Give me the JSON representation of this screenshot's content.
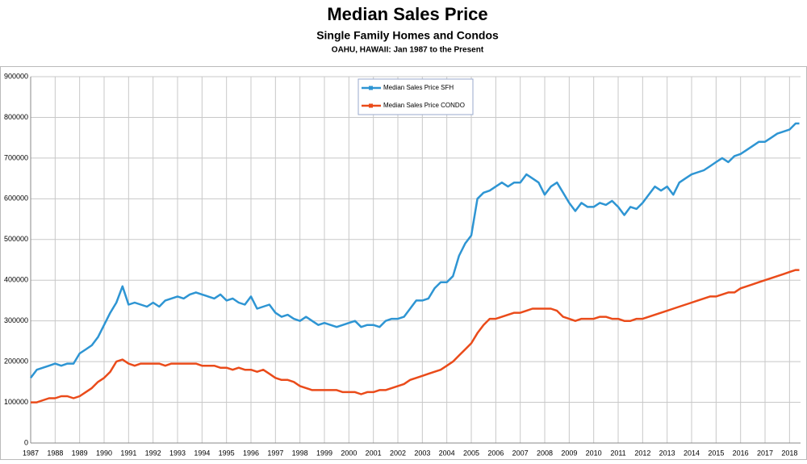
{
  "chart_data": {
    "type": "line",
    "title": "Median Sales Price",
    "subtitle": "Single Family Homes and Condos",
    "caption": "OAHU, HAWAII: Jan 1987 to the Present",
    "x": [
      1987,
      1987.25,
      1987.5,
      1987.75,
      1988,
      1988.25,
      1988.5,
      1988.75,
      1989,
      1989.25,
      1989.5,
      1989.75,
      1990,
      1990.25,
      1990.5,
      1990.75,
      1991,
      1991.25,
      1991.5,
      1991.75,
      1992,
      1992.25,
      1992.5,
      1992.75,
      1993,
      1993.25,
      1993.5,
      1993.75,
      1994,
      1994.25,
      1994.5,
      1994.75,
      1995,
      1995.25,
      1995.5,
      1995.75,
      1996,
      1996.25,
      1996.5,
      1996.75,
      1997,
      1997.25,
      1997.5,
      1997.75,
      1998,
      1998.25,
      1998.5,
      1998.75,
      1999,
      1999.25,
      1999.5,
      1999.75,
      2000,
      2000.25,
      2000.5,
      2000.75,
      2001,
      2001.25,
      2001.5,
      2001.75,
      2002,
      2002.25,
      2002.5,
      2002.75,
      2003,
      2003.25,
      2003.5,
      2003.75,
      2004,
      2004.25,
      2004.5,
      2004.75,
      2005,
      2005.25,
      2005.5,
      2005.75,
      2006,
      2006.25,
      2006.5,
      2006.75,
      2007,
      2007.25,
      2007.5,
      2007.75,
      2008,
      2008.25,
      2008.5,
      2008.75,
      2009,
      2009.25,
      2009.5,
      2009.75,
      2010,
      2010.25,
      2010.5,
      2010.75,
      2011,
      2011.25,
      2011.5,
      2011.75,
      2012,
      2012.25,
      2012.5,
      2012.75,
      2013,
      2013.25,
      2013.5,
      2013.75,
      2014,
      2014.25,
      2014.5,
      2014.75,
      2015,
      2015.25,
      2015.5,
      2015.75,
      2016,
      2016.25,
      2016.5,
      2016.75,
      2017,
      2017.25,
      2017.5,
      2017.75,
      2018,
      2018.25,
      2018.4
    ],
    "series": [
      {
        "name": "Median Sales Price SFH",
        "color": "#2e95d3",
        "values": [
          160000,
          180000,
          185000,
          190000,
          195000,
          190000,
          195000,
          195000,
          220000,
          230000,
          240000,
          260000,
          290000,
          320000,
          345000,
          385000,
          340000,
          345000,
          340000,
          335000,
          345000,
          335000,
          350000,
          355000,
          360000,
          355000,
          365000,
          370000,
          365000,
          360000,
          355000,
          365000,
          350000,
          355000,
          345000,
          340000,
          360000,
          330000,
          335000,
          340000,
          320000,
          310000,
          315000,
          305000,
          300000,
          310000,
          300000,
          290000,
          295000,
          290000,
          285000,
          290000,
          295000,
          300000,
          285000,
          290000,
          290000,
          285000,
          300000,
          305000,
          305000,
          310000,
          330000,
          350000,
          350000,
          355000,
          380000,
          395000,
          395000,
          410000,
          460000,
          490000,
          510000,
          600000,
          615000,
          620000,
          630000,
          640000,
          630000,
          640000,
          640000,
          660000,
          650000,
          640000,
          610000,
          630000,
          640000,
          615000,
          590000,
          570000,
          590000,
          580000,
          580000,
          590000,
          585000,
          595000,
          580000,
          560000,
          580000,
          575000,
          590000,
          610000,
          630000,
          620000,
          630000,
          610000,
          640000,
          650000,
          660000,
          665000,
          670000,
          680000,
          690000,
          700000,
          690000,
          705000,
          710000,
          720000,
          730000,
          740000,
          740000,
          750000,
          760000,
          765000,
          770000,
          785000,
          785000
        ]
      },
      {
        "name": "Median Sales Price CONDO",
        "color": "#ea4b1a",
        "values": [
          100000,
          100000,
          105000,
          110000,
          110000,
          115000,
          115000,
          110000,
          115000,
          125000,
          135000,
          150000,
          160000,
          175000,
          200000,
          205000,
          195000,
          190000,
          195000,
          195000,
          195000,
          195000,
          190000,
          195000,
          195000,
          195000,
          195000,
          195000,
          190000,
          190000,
          190000,
          185000,
          185000,
          180000,
          185000,
          180000,
          180000,
          175000,
          180000,
          170000,
          160000,
          155000,
          155000,
          150000,
          140000,
          135000,
          130000,
          130000,
          130000,
          130000,
          130000,
          125000,
          125000,
          125000,
          120000,
          125000,
          125000,
          130000,
          130000,
          135000,
          140000,
          145000,
          155000,
          160000,
          165000,
          170000,
          175000,
          180000,
          190000,
          200000,
          215000,
          230000,
          245000,
          270000,
          290000,
          305000,
          305000,
          310000,
          315000,
          320000,
          320000,
          325000,
          330000,
          330000,
          330000,
          330000,
          325000,
          310000,
          305000,
          300000,
          305000,
          305000,
          305000,
          310000,
          310000,
          305000,
          305000,
          300000,
          300000,
          305000,
          305000,
          310000,
          315000,
          320000,
          325000,
          330000,
          335000,
          340000,
          345000,
          350000,
          355000,
          360000,
          360000,
          365000,
          370000,
          370000,
          380000,
          385000,
          390000,
          395000,
          400000,
          405000,
          410000,
          415000,
          420000,
          425000,
          425000
        ]
      }
    ],
    "xlim": [
      1987,
      2018.45
    ],
    "xticks": [
      1987,
      1988,
      1989,
      1990,
      1991,
      1992,
      1993,
      1994,
      1995,
      1996,
      1997,
      1998,
      1999,
      2000,
      2001,
      2002,
      2003,
      2004,
      2005,
      2006,
      2007,
      2008,
      2009,
      2010,
      2011,
      2012,
      2013,
      2014,
      2015,
      2016,
      2017,
      2018
    ],
    "ylim": [
      0,
      900000
    ],
    "yticks": [
      0,
      100000,
      200000,
      300000,
      400000,
      500000,
      600000,
      700000,
      800000,
      900000
    ],
    "grid": true,
    "legend": "top-center"
  }
}
